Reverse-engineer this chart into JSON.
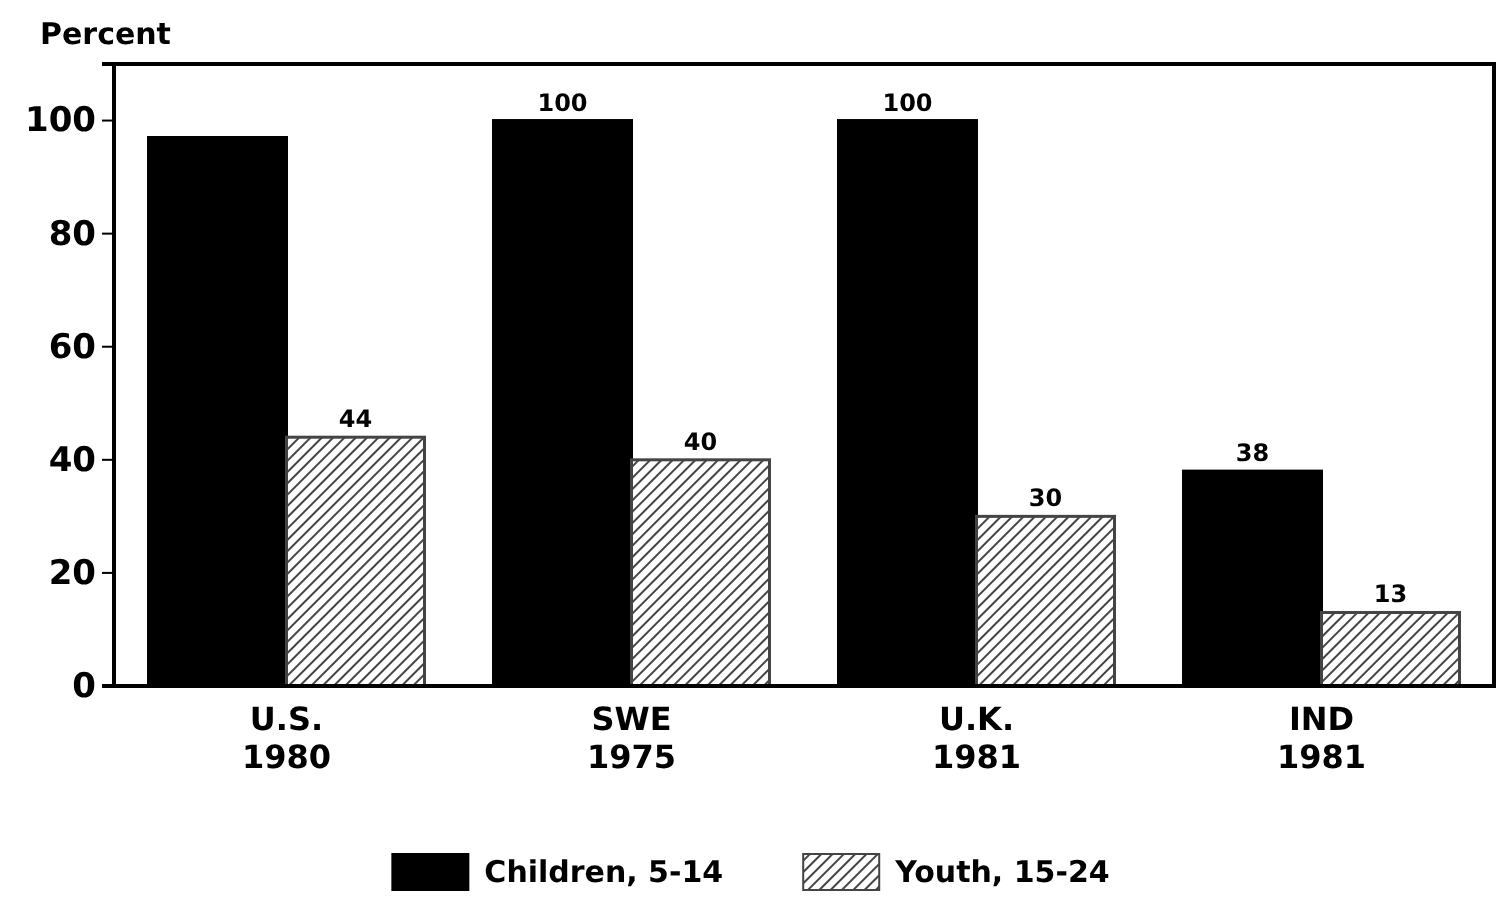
{
  "chart_data": {
    "type": "bar",
    "ylabel": "Percent",
    "categories": [
      "U.S.\n1980",
      "SWE\n1975",
      "U.K.\n1981",
      "IND\n1981"
    ],
    "series": [
      {
        "name": "Children, 5-14",
        "color": "#000000",
        "values": [
          97,
          100,
          100,
          38
        ],
        "value_labels": [
          null,
          "100",
          "100",
          "38"
        ]
      },
      {
        "name": "Youth, 15-24",
        "color": "#444444",
        "values": [
          44,
          40,
          30,
          13
        ],
        "value_labels": [
          "44",
          "40",
          "30",
          "13"
        ]
      }
    ],
    "ylim": [
      0,
      110
    ],
    "yticks": [
      0,
      20,
      40,
      60,
      80,
      100
    ],
    "grid": false,
    "legend": "bottom"
  }
}
